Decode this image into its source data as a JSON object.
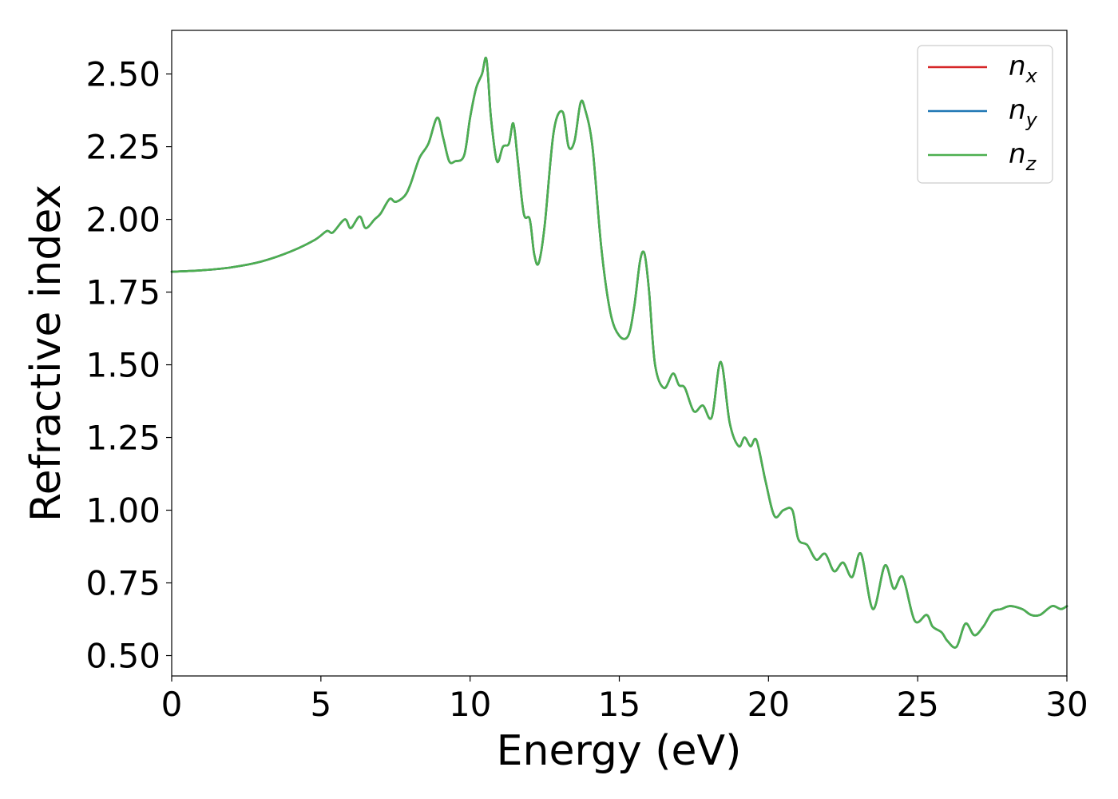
{
  "chart_data": {
    "type": "line",
    "xlabel": "Energy (eV)",
    "ylabel": "Refractive index",
    "xlim": [
      0,
      30
    ],
    "ylim": [
      0.43,
      2.65
    ],
    "x_ticks": [
      "0",
      "5",
      "10",
      "15",
      "20",
      "25",
      "30"
    ],
    "x_tick_values": [
      0,
      5,
      10,
      15,
      20,
      25,
      30
    ],
    "y_ticks": [
      "0.50",
      "0.75",
      "1.00",
      "1.25",
      "1.50",
      "1.75",
      "2.00",
      "2.25",
      "2.50"
    ],
    "y_tick_values": [
      0.5,
      0.75,
      1.0,
      1.25,
      1.5,
      1.75,
      2.0,
      2.25,
      2.5
    ],
    "grid": false,
    "legend_position": "top-right",
    "x": [
      0,
      1,
      2,
      3,
      4,
      4.8,
      5.2,
      5.4,
      5.8,
      6.0,
      6.3,
      6.5,
      6.8,
      7.0,
      7.3,
      7.5,
      7.8,
      8.0,
      8.3,
      8.6,
      8.9,
      9.1,
      9.3,
      9.5,
      9.8,
      10.0,
      10.2,
      10.4,
      10.55,
      10.7,
      10.9,
      11.1,
      11.3,
      11.45,
      11.6,
      11.8,
      12.0,
      12.15,
      12.3,
      12.5,
      12.8,
      13.1,
      13.3,
      13.5,
      13.7,
      13.85,
      14.1,
      14.4,
      14.7,
      15.0,
      15.3,
      15.5,
      15.7,
      15.85,
      16.0,
      16.2,
      16.5,
      16.8,
      17.0,
      17.2,
      17.5,
      17.8,
      18.1,
      18.4,
      18.7,
      19.0,
      19.2,
      19.4,
      19.6,
      19.9,
      20.2,
      20.5,
      20.8,
      21.0,
      21.3,
      21.6,
      21.9,
      22.2,
      22.5,
      22.8,
      23.1,
      23.5,
      23.9,
      24.2,
      24.5,
      24.9,
      25.3,
      25.5,
      25.8,
      26.0,
      26.3,
      26.6,
      26.9,
      27.2,
      27.5,
      27.8,
      28.1,
      28.5,
      28.8,
      29.1,
      29.5,
      29.8,
      30.0
    ],
    "series": [
      {
        "name": "n_x",
        "label_base": "n",
        "label_sub": "x",
        "color": "#d62728",
        "values": null
      },
      {
        "name": "n_y",
        "label_base": "n",
        "label_sub": "y",
        "color": "#1f77b4",
        "values": null
      },
      {
        "name": "n_z",
        "label_base": "n",
        "label_sub": "z",
        "color": "#4caf50",
        "values": null
      }
    ],
    "shared_values": [
      1.82,
      1.825,
      1.835,
      1.855,
      1.89,
      1.93,
      1.96,
      1.955,
      2.0,
      1.97,
      2.01,
      1.97,
      2.0,
      2.02,
      2.07,
      2.06,
      2.08,
      2.12,
      2.21,
      2.26,
      2.35,
      2.28,
      2.2,
      2.2,
      2.22,
      2.35,
      2.45,
      2.5,
      2.55,
      2.35,
      2.2,
      2.25,
      2.26,
      2.33,
      2.2,
      2.02,
      2.0,
      1.88,
      1.85,
      1.98,
      2.3,
      2.37,
      2.25,
      2.27,
      2.4,
      2.38,
      2.25,
      1.9,
      1.68,
      1.6,
      1.6,
      1.7,
      1.86,
      1.88,
      1.75,
      1.5,
      1.42,
      1.47,
      1.43,
      1.42,
      1.34,
      1.36,
      1.32,
      1.51,
      1.3,
      1.22,
      1.25,
      1.22,
      1.24,
      1.1,
      0.98,
      1.0,
      1.0,
      0.9,
      0.88,
      0.83,
      0.85,
      0.79,
      0.82,
      0.77,
      0.85,
      0.66,
      0.81,
      0.73,
      0.77,
      0.62,
      0.64,
      0.6,
      0.58,
      0.55,
      0.53,
      0.61,
      0.57,
      0.6,
      0.65,
      0.66,
      0.67,
      0.66,
      0.64,
      0.64,
      0.67,
      0.66,
      0.67
    ]
  }
}
